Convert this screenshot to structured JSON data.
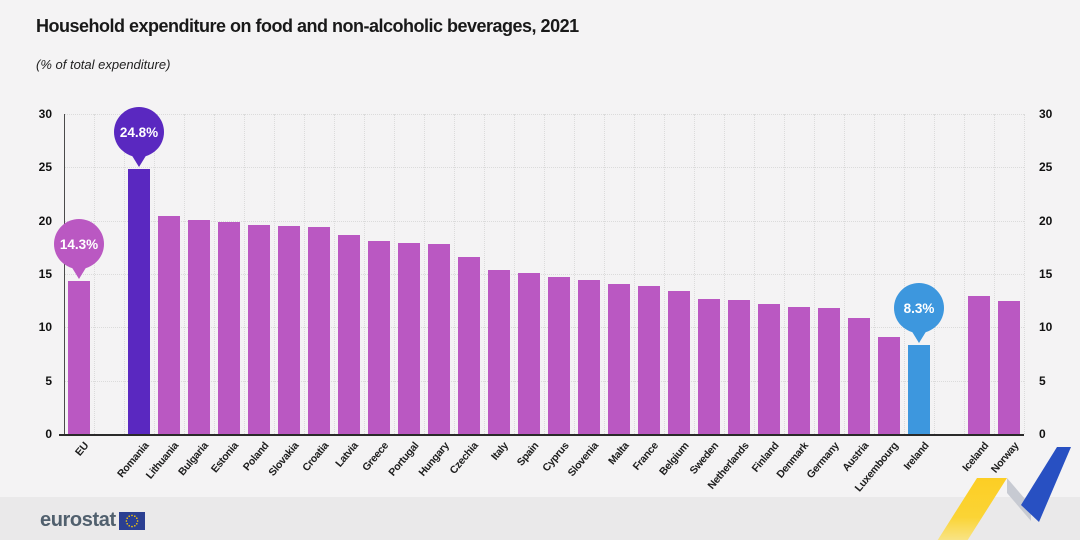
{
  "title": "Household expenditure on food and non-alcoholic beverages, 2021",
  "subtitle": "(% of total expenditure)",
  "footer": {
    "logo_text": "eurostat"
  },
  "colors": {
    "page_bg": "#f4f3f4",
    "footer_bg": "#eae9ea",
    "bar": "#ba58c2",
    "grid": "#dbdbdb",
    "axis": "#4a4a4a",
    "logo_text": "#51606e",
    "flag_blue": "#2b3f92",
    "flag_stars": "#ffcc00",
    "deco_yellow": "#fcce24",
    "deco_yellow_mid": "#fbd435",
    "deco_yellow_light": "#f7e9a4",
    "deco_blue": "#2850c2",
    "deco_gray": "#c7cad2"
  },
  "chart_data": {
    "type": "bar",
    "title": "Household expenditure on food and non-alcoholic beverages, 2021",
    "subtitle": "(% of total expenditure)",
    "ylim": [
      0,
      30
    ],
    "yticks": [
      0,
      5,
      10,
      15,
      20,
      25,
      30
    ],
    "grid": "dotted",
    "categories": [
      "EU",
      "Romania",
      "Lithuania",
      "Bulgaria",
      "Estonia",
      "Poland",
      "Slovakia",
      "Croatia",
      "Latvia",
      "Greece",
      "Portugal",
      "Hungary",
      "Czechia",
      "Italy",
      "Spain",
      "Cyprus",
      "Slovenia",
      "Malta",
      "France",
      "Belgium",
      "Sweden",
      "Netherlands",
      "Finland",
      "Denmark",
      "Germany",
      "Austria",
      "Luxembourg",
      "Ireland",
      "Iceland",
      "Norway"
    ],
    "values": [
      14.3,
      24.8,
      20.4,
      20.1,
      19.9,
      19.6,
      19.5,
      19.4,
      18.7,
      18.1,
      17.9,
      17.8,
      16.6,
      15.4,
      15.1,
      14.7,
      14.4,
      14.1,
      13.9,
      13.4,
      12.7,
      12.6,
      12.2,
      11.9,
      11.8,
      10.9,
      9.1,
      8.3,
      12.9,
      12.5
    ],
    "gap_before": [
      "Romania",
      "Iceland"
    ],
    "highlight_colors": {
      "Romania": "#5a28c0",
      "Ireland": "#3d97de"
    },
    "callouts": [
      {
        "category": "EU",
        "label": "14.3%"
      },
      {
        "category": "Romania",
        "label": "24.8%"
      },
      {
        "category": "Ireland",
        "label": "8.3%"
      }
    ]
  }
}
